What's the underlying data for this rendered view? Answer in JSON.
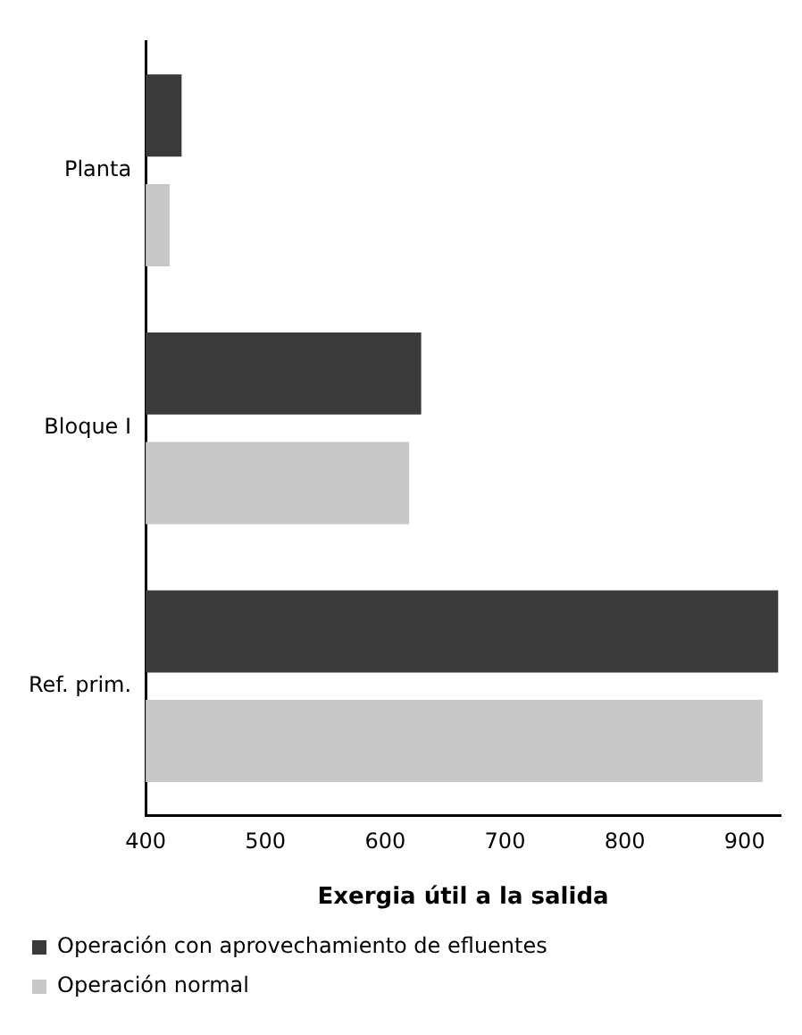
{
  "chart_data": {
    "type": "bar",
    "orientation": "horizontal",
    "xlabel": "Exergia útil a la salida",
    "categories": [
      "Planta",
      "Bloque I",
      "Ref. prim."
    ],
    "series": [
      {
        "name": "Operación con aprovechamiento de efluentes",
        "color": "#3a3a3a",
        "values": [
          430,
          630,
          928
        ]
      },
      {
        "name": "Operación normal",
        "color": "#c8c8c8",
        "values": [
          420,
          620,
          915
        ]
      }
    ],
    "xlim": [
      400,
      930
    ],
    "xticks": [
      400,
      500,
      600,
      700,
      800,
      900
    ],
    "grid": false,
    "legend": "bottom"
  }
}
